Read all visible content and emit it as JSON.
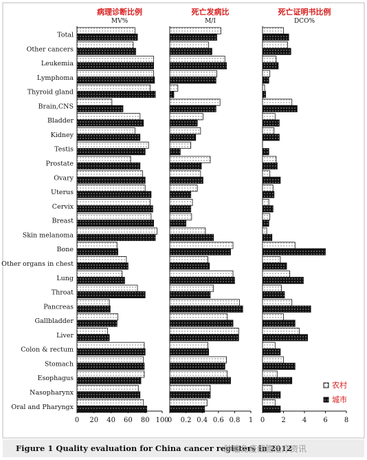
{
  "figure": {
    "caption": "Figure 1   Quality evaluation for China cancer registers in 2012",
    "watermark": "肿瘤免疫细胞治疗资讯"
  },
  "colors": {
    "rural_fill": "#ffffff",
    "urban_fill": "#111111",
    "title_red": "#d81e1e"
  },
  "chart_data": [
    {
      "type": "bar",
      "orientation": "horizontal",
      "title": "病理诊断比例",
      "subtitle": "MV%",
      "categories": [
        "Total",
        "Other cancers",
        "Leukemia",
        "Lymphoma",
        "Thyroid gland",
        "Brain,CNS",
        "Bladder",
        "Kidney",
        "Testis",
        "Prostate",
        "Ovary",
        "Uterus",
        "Cervix",
        "Breast",
        "Skin melanoma",
        "Bone",
        "Other organs in chest",
        "Lung",
        "Throat",
        "Pancreas",
        "Gallbladder",
        "Liver",
        "Colon & rectum",
        "Stomach",
        "Esophagus",
        "Nasopharynx",
        "Oral and Pharyngx"
      ],
      "xlim": [
        0,
        100
      ],
      "xticks": [
        "0",
        "20",
        "40",
        "60",
        "80",
        "100"
      ],
      "series": [
        {
          "name": "农村",
          "values": [
            68,
            66,
            90,
            90,
            86,
            41,
            74,
            68,
            84,
            63,
            77,
            80,
            86,
            87,
            94,
            47,
            58,
            53,
            71,
            38,
            48,
            36,
            79,
            78,
            79,
            72,
            78
          ]
        },
        {
          "name": "城市",
          "values": [
            71,
            69,
            90,
            91,
            92,
            54,
            78,
            74,
            80,
            74,
            80,
            87,
            89,
            90,
            92,
            48,
            60,
            56,
            80,
            39,
            47,
            38,
            80,
            79,
            75,
            74,
            82
          ]
        }
      ]
    },
    {
      "type": "bar",
      "orientation": "horizontal",
      "title": "死亡发病比",
      "subtitle": "M/I",
      "categories": [
        "Total",
        "Other cancers",
        "Leukemia",
        "Lymphoma",
        "Thyroid gland",
        "Brain,CNS",
        "Bladder",
        "Kidney",
        "Testis",
        "Prostate",
        "Ovary",
        "Uterus",
        "Cervix",
        "Breast",
        "Skin melanoma",
        "Bone",
        "Other organs in chest",
        "Lung",
        "Throat",
        "Pancreas",
        "Gallbladder",
        "Liver",
        "Colon & rectum",
        "Stomach",
        "Esophagus",
        "Nasopharynx",
        "Oral and Pharyngx"
      ],
      "xlim": [
        0,
        1
      ],
      "xticks": [
        "0",
        "0.2",
        "0.4",
        "0.6",
        "0.8",
        "1"
      ],
      "series": [
        {
          "name": "农村",
          "values": [
            0.63,
            0.48,
            0.68,
            0.58,
            0.1,
            0.62,
            0.41,
            0.38,
            0.26,
            0.5,
            0.38,
            0.34,
            0.28,
            0.27,
            0.44,
            0.78,
            0.47,
            0.78,
            0.54,
            0.86,
            0.71,
            0.85,
            0.47,
            0.7,
            0.71,
            0.5,
            0.46
          ]
        },
        {
          "name": "城市",
          "values": [
            0.58,
            0.52,
            0.7,
            0.57,
            0.05,
            0.57,
            0.34,
            0.32,
            0.13,
            0.39,
            0.41,
            0.26,
            0.26,
            0.2,
            0.54,
            0.75,
            0.49,
            0.8,
            0.5,
            0.9,
            0.78,
            0.85,
            0.48,
            0.68,
            0.75,
            0.5,
            0.43
          ]
        }
      ]
    },
    {
      "type": "bar",
      "orientation": "horizontal",
      "title": "死亡证明书比例",
      "subtitle": "DCO%",
      "categories": [
        "Total",
        "Other cancers",
        "Leukemia",
        "Lymphoma",
        "Thyroid gland",
        "Brain,CNS",
        "Bladder",
        "Kidney",
        "Testis",
        "Prostate",
        "Ovary",
        "Uterus",
        "Cervix",
        "Breast",
        "Skin melanoma",
        "Bone",
        "Other organs in chest",
        "Lung",
        "Throat",
        "Pancreas",
        "Gallbladder",
        "Liver",
        "Colon & rectum",
        "Stomach",
        "Esophagus",
        "Nasopharynx",
        "Oral and Pharyngx"
      ],
      "xlim": [
        0,
        8
      ],
      "xticks": [
        "0",
        "2",
        "4",
        "6",
        "8"
      ],
      "series": [
        {
          "name": "农村",
          "values": [
            2.0,
            2.4,
            1.3,
            0.7,
            0.2,
            2.8,
            1.2,
            1.1,
            0.0,
            1.3,
            0.7,
            1.0,
            0.6,
            0.7,
            0.4,
            3.1,
            1.7,
            2.6,
            1.8,
            2.8,
            2.0,
            3.5,
            1.2,
            2.0,
            1.4,
            0.9,
            1.2
          ]
        },
        {
          "name": "城市",
          "values": [
            2.5,
            2.7,
            1.5,
            0.6,
            0.3,
            3.3,
            1.6,
            1.6,
            0.6,
            1.4,
            1.7,
            1.1,
            1.0,
            0.6,
            0.9,
            6.0,
            2.3,
            3.9,
            2.1,
            4.6,
            3.1,
            4.3,
            1.7,
            3.1,
            2.8,
            1.7,
            1.7
          ]
        }
      ]
    }
  ]
}
